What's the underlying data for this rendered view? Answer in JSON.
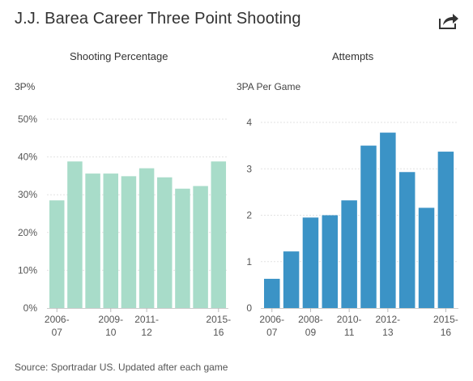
{
  "title": "J.J. Barea Career Three Point Shooting",
  "footer": "Source: Sportradar US. Updated after each game",
  "share_icon": "share-icon",
  "chart_data": [
    {
      "type": "bar",
      "title": "Shooting Percentage",
      "ylabel": "3P%",
      "color": "#a8dcc9",
      "ylim": [
        0,
        50
      ],
      "yticks": [
        "0%",
        "10%",
        "20%",
        "30%",
        "40%",
        "50%"
      ],
      "ytick_values": [
        0,
        10,
        20,
        30,
        40,
        50
      ],
      "xtick_labels": [
        {
          "index": 0,
          "line1": "2006-",
          "line2": "07"
        },
        {
          "index": 3,
          "line1": "2009-",
          "line2": "10"
        },
        {
          "index": 5,
          "line1": "2011-",
          "line2": "12"
        },
        {
          "index": 9,
          "line1": "2015-",
          "line2": "16"
        }
      ],
      "values": [
        28.5,
        38.8,
        35.6,
        35.6,
        34.9,
        37.0,
        34.6,
        31.6,
        32.3,
        38.8
      ]
    },
    {
      "type": "bar",
      "title": "Attempts",
      "ylabel": "3PA Per Game",
      "color": "#3b93c6",
      "ylim": [
        0,
        4
      ],
      "yticks": [
        "0",
        "1",
        "2",
        "3",
        "4"
      ],
      "ytick_values": [
        0,
        1,
        2,
        3,
        4
      ],
      "xtick_labels": [
        {
          "index": 0,
          "line1": "2006-",
          "line2": "07"
        },
        {
          "index": 2,
          "line1": "2008-",
          "line2": "09"
        },
        {
          "index": 4,
          "line1": "2010-",
          "line2": "11"
        },
        {
          "index": 6,
          "line1": "2012-",
          "line2": "13"
        },
        {
          "index": 9,
          "line1": "2015-",
          "line2": "16"
        }
      ],
      "values": [
        0.63,
        1.22,
        1.95,
        2.0,
        2.32,
        3.5,
        3.78,
        2.93,
        2.16,
        3.37
      ]
    }
  ]
}
